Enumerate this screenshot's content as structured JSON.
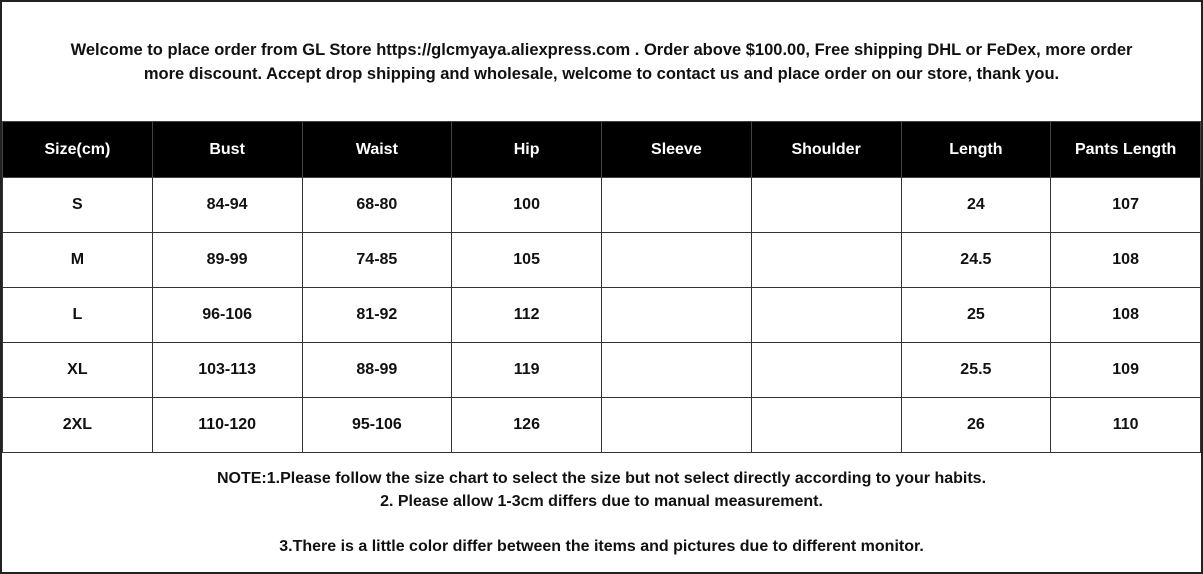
{
  "intro": {
    "line1": "Welcome to place order from GL Store https://glcmyaya.aliexpress.com . Order above $100.00, Free shipping DHL or FeDex, more order",
    "line2": "more discount. Accept drop shipping and wholesale, welcome to contact us and place order on our store, thank you."
  },
  "table": {
    "headers": [
      "Size(cm)",
      "Bust",
      "Waist",
      "Hip",
      "Sleeve",
      "Shoulder",
      "Length",
      "Pants  Length"
    ],
    "rows": [
      [
        "S",
        "84-94",
        "68-80",
        "100",
        "",
        "",
        "24",
        "107"
      ],
      [
        "M",
        "89-99",
        "74-85",
        "105",
        "",
        "",
        "24.5",
        "108"
      ],
      [
        "L",
        "96-106",
        "81-92",
        "112",
        "",
        "",
        "25",
        "108"
      ],
      [
        "XL",
        "103-113",
        "88-99",
        "119",
        "",
        "",
        "25.5",
        "109"
      ],
      [
        "2XL",
        "110-120",
        "95-106",
        "126",
        "",
        "",
        "26",
        "110"
      ]
    ]
  },
  "notes": {
    "note1": "NOTE:1.Please follow the size chart to select the size but not select directly according to your habits.",
    "note2": "2. Please allow 1-3cm differs due to manual measurement.",
    "note3": "3.There is a little color differ between the items and pictures due to different monitor."
  }
}
